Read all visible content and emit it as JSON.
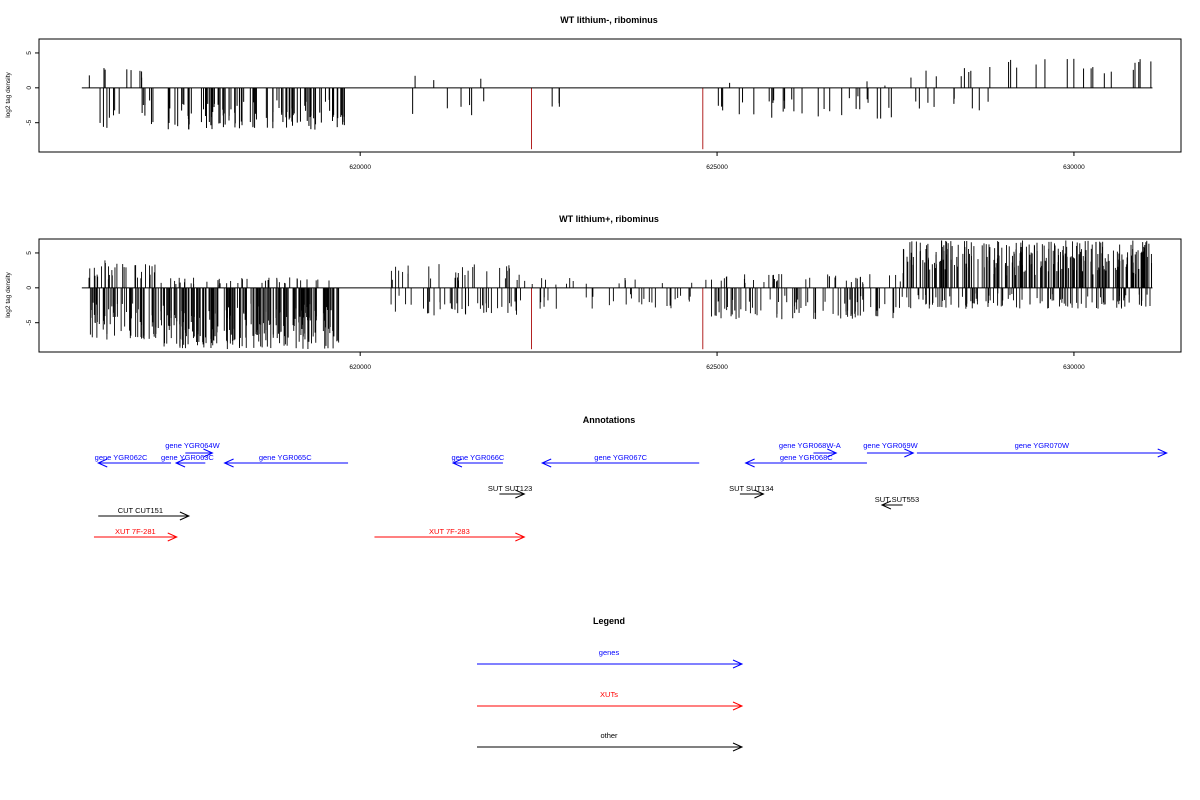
{
  "colors": {
    "signal": "#000000",
    "marker": "#b22222",
    "gene": "#0000ff",
    "xut": "#ff0000",
    "other": "#000000"
  },
  "chart_data": [
    {
      "type": "bar",
      "title": "WT lithium-, ribominus",
      "ylabel": "log2 tag density",
      "xlim": [
        615500,
        631500
      ],
      "ylim": [
        -9.2,
        7
      ],
      "x_ticks": [
        "620000",
        "625000",
        "630000"
      ],
      "y_ticks": [
        "5",
        "0",
        "-5"
      ],
      "x_tick_values": [
        620000,
        625000,
        630000
      ],
      "y_tick_values": [
        5,
        0,
        -5
      ],
      "baseline_range": [
        616100,
        631100
      ],
      "red_markers": [
        {
          "x": 622400,
          "y": -8.8
        },
        {
          "x": 624800,
          "y": -8.8
        }
      ],
      "density": "sparse",
      "regions": [
        {
          "from": 616200,
          "to": 617100,
          "n": 22,
          "min": -6,
          "max": 3.2
        },
        {
          "from": 617300,
          "to": 619800,
          "n": 110,
          "min": -6,
          "max": 0
        },
        {
          "from": 620700,
          "to": 621800,
          "n": 9,
          "min": -4,
          "max": 1.8
        },
        {
          "from": 622500,
          "to": 623100,
          "n": 3,
          "min": -3,
          "max": 0
        },
        {
          "from": 625000,
          "to": 627500,
          "n": 34,
          "min": -4.5,
          "max": 1.2
        },
        {
          "from": 627500,
          "to": 628800,
          "n": 16,
          "min": -3.5,
          "max": 3
        },
        {
          "from": 628800,
          "to": 631100,
          "n": 18,
          "min": 0,
          "max": 4.2
        }
      ]
    },
    {
      "type": "bar",
      "title": "WT lithium+, ribominus",
      "ylabel": "log2 tag density",
      "xlim": [
        615500,
        631500
      ],
      "ylim": [
        -9.2,
        7
      ],
      "x_ticks": [
        "620000",
        "625000",
        "630000"
      ],
      "y_ticks": [
        "5",
        "0",
        "-5"
      ],
      "x_tick_values": [
        620000,
        625000,
        630000
      ],
      "y_tick_values": [
        5,
        0,
        -5
      ],
      "baseline_range": [
        616100,
        631100
      ],
      "red_markers": [
        {
          "x": 622400,
          "y": -8.8
        },
        {
          "x": 624800,
          "y": -8.8
        }
      ],
      "density": "dense",
      "regions": [
        {
          "from": 616200,
          "to": 617200,
          "n": 90,
          "min": -7.5,
          "max": 4
        },
        {
          "from": 617200,
          "to": 619700,
          "n": 260,
          "min": -8.8,
          "max": 1.5
        },
        {
          "from": 620400,
          "to": 622300,
          "n": 70,
          "min": -4,
          "max": 3.5
        },
        {
          "from": 622300,
          "to": 624900,
          "n": 45,
          "min": -3,
          "max": 1.5
        },
        {
          "from": 624900,
          "to": 627600,
          "n": 120,
          "min": -4.5,
          "max": 2
        },
        {
          "from": 627600,
          "to": 631100,
          "n": 360,
          "min": -3,
          "max": 6.8
        }
      ]
    }
  ],
  "annotations": {
    "title": "Annotations",
    "items": [
      {
        "label": "gene YGR062C",
        "cls": "gene",
        "x1": 616330,
        "x2": 617350,
        "row": "g2",
        "dir": "rev",
        "lx": 616650
      },
      {
        "label": "gene YGR063C",
        "cls": "gene",
        "x1": 617420,
        "x2": 617830,
        "row": "g2",
        "dir": "rev",
        "lx": 617580
      },
      {
        "label": "gene YGR064W",
        "cls": "gene",
        "x1": 617550,
        "x2": 617930,
        "row": "g1",
        "dir": "fwd",
        "lx": 617650
      },
      {
        "label": "gene YGR065C",
        "cls": "gene",
        "x1": 618100,
        "x2": 619830,
        "row": "g2",
        "dir": "rev",
        "lx": 618950
      },
      {
        "label": "gene YGR066C",
        "cls": "gene",
        "x1": 621300,
        "x2": 622000,
        "row": "g2",
        "dir": "rev",
        "lx": 621650
      },
      {
        "label": "gene YGR067C",
        "cls": "gene",
        "x1": 622550,
        "x2": 624750,
        "row": "g2",
        "dir": "rev",
        "lx": 623650
      },
      {
        "label": "gene YGR068W-A",
        "cls": "gene",
        "x1": 626350,
        "x2": 626670,
        "row": "g1",
        "dir": "fwd",
        "lx": 626300
      },
      {
        "label": "gene YGR068C",
        "cls": "gene",
        "x1": 625400,
        "x2": 627100,
        "row": "g2",
        "dir": "rev",
        "lx": 626250
      },
      {
        "label": "gene YGR069W",
        "cls": "gene",
        "x1": 627100,
        "x2": 627750,
        "row": "g1",
        "dir": "fwd",
        "lx": 627430
      },
      {
        "label": "gene YGR070W",
        "cls": "gene",
        "x1": 627800,
        "x2": 631300,
        "row": "g1",
        "dir": "fwd",
        "lx": 629550
      },
      {
        "label": "SUT SUT123",
        "cls": "other",
        "x1": 621950,
        "x2": 622300,
        "row": "s1",
        "dir": "fwd",
        "lx": 622100
      },
      {
        "label": "SUT SUT134",
        "cls": "other",
        "x1": 625320,
        "x2": 625650,
        "row": "s1",
        "dir": "fwd",
        "lx": 625480
      },
      {
        "label": "SUT SUT553",
        "cls": "other",
        "x1": 627310,
        "x2": 627600,
        "row": "s2",
        "dir": "rev",
        "lx": 627520
      },
      {
        "label": "CUT CUT151",
        "cls": "other",
        "x1": 616330,
        "x2": 617600,
        "row": "c1",
        "dir": "fwd",
        "lx": 616920
      },
      {
        "label": "XUT 7F-281",
        "cls": "xut",
        "x1": 616270,
        "x2": 617430,
        "row": "x1",
        "dir": "fwd",
        "lx": 616850
      },
      {
        "label": "XUT 7F-283",
        "cls": "xut",
        "x1": 620200,
        "x2": 622300,
        "row": "x1",
        "dir": "fwd",
        "lx": 621250
      }
    ]
  },
  "legend": {
    "title": "Legend",
    "items": [
      {
        "label": "genes",
        "cls": "gene"
      },
      {
        "label": "XUTs",
        "cls": "xut"
      },
      {
        "label": "other",
        "cls": "other"
      }
    ]
  }
}
